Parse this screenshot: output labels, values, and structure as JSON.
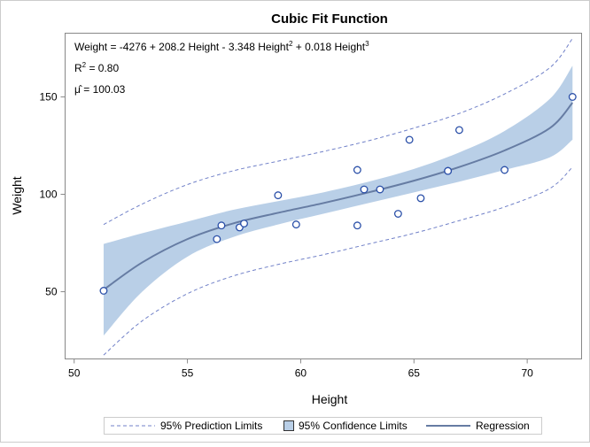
{
  "chart_data": {
    "type": "scatter",
    "title": "Cubic Fit Function",
    "xlabel": "Height",
    "ylabel": "Weight",
    "xlim": [
      49.6,
      72.4
    ],
    "ylim": [
      15.5,
      182.7
    ],
    "xticks": [
      50,
      55,
      60,
      65,
      70
    ],
    "yticks": [
      50,
      100,
      150
    ],
    "grid": false,
    "annotations": {
      "equation": {
        "lhs": "Weight = -4276 + 208.2 Height - 3.348 Height",
        "sup1": "2",
        "mid": " + 0.018 Height",
        "sup2": "3"
      },
      "r2": {
        "pre": "R",
        "sup": "2",
        "post": " = 0.80"
      },
      "mu": "μ̂ = 100.03"
    },
    "points": {
      "x": [
        69,
        56.5,
        65.3,
        62.8,
        63.5,
        57.3,
        59.8,
        62.5,
        62.5,
        59,
        51.3,
        64.3,
        56.3,
        66.5,
        72,
        64.8,
        67,
        57.5,
        66.5
      ],
      "y": [
        112.5,
        84,
        98,
        102.5,
        102.5,
        83,
        84.5,
        112.5,
        84,
        99.5,
        50.5,
        90,
        77,
        112,
        150,
        128,
        133,
        85,
        112
      ]
    },
    "fit": {
      "x": [
        51.3,
        53,
        55,
        57,
        59,
        61,
        63,
        65,
        67,
        69,
        71,
        72
      ],
      "regression": [
        51,
        65,
        77,
        85,
        90.5,
        95.5,
        101,
        107,
        114,
        122.5,
        134,
        147
      ],
      "cl_lower": [
        27.5,
        50,
        68,
        78,
        84.5,
        90,
        95.5,
        101,
        106.5,
        112.5,
        119,
        128
      ],
      "cl_upper": [
        74.5,
        80,
        86,
        92,
        96.5,
        101,
        106.5,
        113,
        121.5,
        132.5,
        149,
        166
      ],
      "pl_lower": [
        17.5,
        35,
        49,
        58,
        64,
        69,
        74.5,
        80,
        86.5,
        93.5,
        103,
        114
      ],
      "pl_upper": [
        84.5,
        95,
        105,
        112,
        117,
        122,
        127.5,
        134,
        141.5,
        151.5,
        165,
        180
      ]
    },
    "legend": {
      "placement": "bottom",
      "items": [
        "95% Prediction Limits",
        "95% Confidence Limits",
        "Regression"
      ]
    },
    "colors": {
      "band": "#b9cfe7",
      "regression": "#667ca3",
      "prediction": "#7080c8",
      "marker": "#2a4fa8"
    }
  }
}
